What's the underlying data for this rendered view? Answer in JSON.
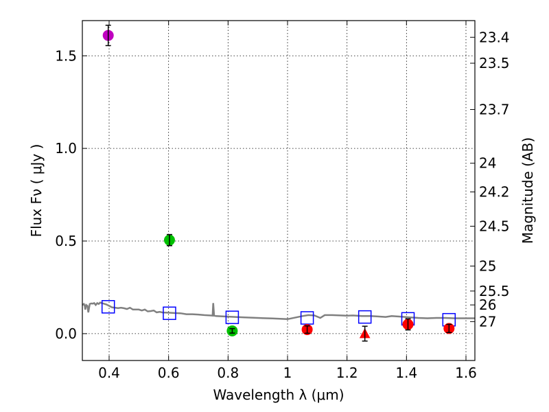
{
  "chart_data": {
    "type": "scatter",
    "xlabel": "Wavelength  λ (μm)",
    "ylabel": "Flux  Fν  ( μJy )",
    "y2label": "Magnitude (AB)",
    "xlim": [
      0.31,
      1.63
    ],
    "ylim": [
      -0.145,
      1.69
    ],
    "xticks": [
      0.4,
      0.6,
      0.8,
      1.0,
      1.2,
      1.4,
      1.6
    ],
    "xtick_labels": [
      "0.4",
      "0.6",
      "0.8",
      "1",
      "1.2",
      "1.4",
      "1.6"
    ],
    "yticks": [
      0.0,
      0.5,
      1.0,
      1.5
    ],
    "ytick_labels": [
      "0.0",
      "0.5",
      "1.0",
      "1.5"
    ],
    "grid": true,
    "magnitude_ticks": [
      {
        "label": "23.4",
        "flux": 1.6
      },
      {
        "label": "23.5",
        "flux": 1.46
      },
      {
        "label": "23.7",
        "flux": 1.21
      },
      {
        "label": "24",
        "flux": 0.92
      },
      {
        "label": "24.2",
        "flux": 0.765
      },
      {
        "label": "24.5",
        "flux": 0.58
      },
      {
        "label": "25",
        "flux": 0.365
      },
      {
        "label": "25.5",
        "flux": 0.23
      },
      {
        "label": "26",
        "flux": 0.155
      },
      {
        "label": "27",
        "flux": 0.065
      }
    ],
    "observed_points": [
      {
        "x": 0.397,
        "y": 1.61,
        "err": 0.055,
        "color": "#bf00bf",
        "marker": "circle"
      },
      {
        "x": 0.603,
        "y": 0.505,
        "err": 0.03,
        "color": "#00bf00",
        "marker": "circle"
      },
      {
        "x": 0.814,
        "y": 0.015,
        "err": 0.012,
        "color": "#00bf00",
        "marker": "circle"
      },
      {
        "x": 1.066,
        "y": 0.022,
        "err": 0.02,
        "color": "#ff0000",
        "marker": "circle"
      },
      {
        "x": 1.26,
        "y": 0.0,
        "err": 0.04,
        "color": "#ff0000",
        "marker": "triangle"
      },
      {
        "x": 1.405,
        "y": 0.05,
        "err": 0.03,
        "color": "#ff0000",
        "marker": "circle"
      },
      {
        "x": 1.543,
        "y": 0.028,
        "err": 0.022,
        "color": "#ff0000",
        "marker": "circle"
      }
    ],
    "model_points": [
      {
        "x": 0.397,
        "y": 0.145
      },
      {
        "x": 0.603,
        "y": 0.11
      },
      {
        "x": 0.814,
        "y": 0.088
      },
      {
        "x": 1.066,
        "y": 0.085
      },
      {
        "x": 1.26,
        "y": 0.09
      },
      {
        "x": 1.405,
        "y": 0.08
      },
      {
        "x": 1.543,
        "y": 0.075
      }
    ],
    "model_color": "#0000ff",
    "spectrum_color": "#808080",
    "spectrum": [
      [
        0.31,
        0.155
      ],
      [
        0.315,
        0.16
      ],
      [
        0.318,
        0.15
      ],
      [
        0.32,
        0.13
      ],
      [
        0.323,
        0.155
      ],
      [
        0.327,
        0.15
      ],
      [
        0.33,
        0.115
      ],
      [
        0.335,
        0.16
      ],
      [
        0.34,
        0.163
      ],
      [
        0.345,
        0.162
      ],
      [
        0.35,
        0.165
      ],
      [
        0.355,
        0.155
      ],
      [
        0.36,
        0.165
      ],
      [
        0.365,
        0.16
      ],
      [
        0.37,
        0.168
      ],
      [
        0.375,
        0.165
      ],
      [
        0.38,
        0.163
      ],
      [
        0.39,
        0.158
      ],
      [
        0.4,
        0.15
      ],
      [
        0.41,
        0.142
      ],
      [
        0.42,
        0.14
      ],
      [
        0.43,
        0.138
      ],
      [
        0.44,
        0.14
      ],
      [
        0.45,
        0.137
      ],
      [
        0.46,
        0.133
      ],
      [
        0.47,
        0.14
      ],
      [
        0.48,
        0.13
      ],
      [
        0.5,
        0.13
      ],
      [
        0.51,
        0.125
      ],
      [
        0.52,
        0.13
      ],
      [
        0.53,
        0.12
      ],
      [
        0.54,
        0.122
      ],
      [
        0.55,
        0.125
      ],
      [
        0.56,
        0.115
      ],
      [
        0.57,
        0.118
      ],
      [
        0.58,
        0.114
      ],
      [
        0.6,
        0.113
      ],
      [
        0.62,
        0.111
      ],
      [
        0.64,
        0.11
      ],
      [
        0.66,
        0.105
      ],
      [
        0.68,
        0.105
      ],
      [
        0.7,
        0.103
      ],
      [
        0.72,
        0.1
      ],
      [
        0.74,
        0.098
      ],
      [
        0.748,
        0.097
      ],
      [
        0.75,
        0.165
      ],
      [
        0.753,
        0.097
      ],
      [
        0.76,
        0.095
      ],
      [
        0.8,
        0.092
      ],
      [
        0.85,
        0.088
      ],
      [
        0.9,
        0.085
      ],
      [
        0.95,
        0.082
      ],
      [
        1.0,
        0.078
      ],
      [
        1.05,
        0.095
      ],
      [
        1.07,
        0.1
      ],
      [
        1.09,
        0.098
      ],
      [
        1.1,
        0.092
      ],
      [
        1.11,
        0.085
      ],
      [
        1.125,
        0.1
      ],
      [
        1.15,
        0.1
      ],
      [
        1.18,
        0.098
      ],
      [
        1.2,
        0.097
      ],
      [
        1.22,
        0.098
      ],
      [
        1.25,
        0.095
      ],
      [
        1.28,
        0.095
      ],
      [
        1.3,
        0.093
      ],
      [
        1.33,
        0.09
      ],
      [
        1.35,
        0.095
      ],
      [
        1.38,
        0.092
      ],
      [
        1.41,
        0.088
      ],
      [
        1.44,
        0.085
      ],
      [
        1.47,
        0.083
      ],
      [
        1.5,
        0.085
      ],
      [
        1.53,
        0.085
      ],
      [
        1.56,
        0.083
      ],
      [
        1.6,
        0.083
      ],
      [
        1.63,
        0.083
      ]
    ]
  }
}
